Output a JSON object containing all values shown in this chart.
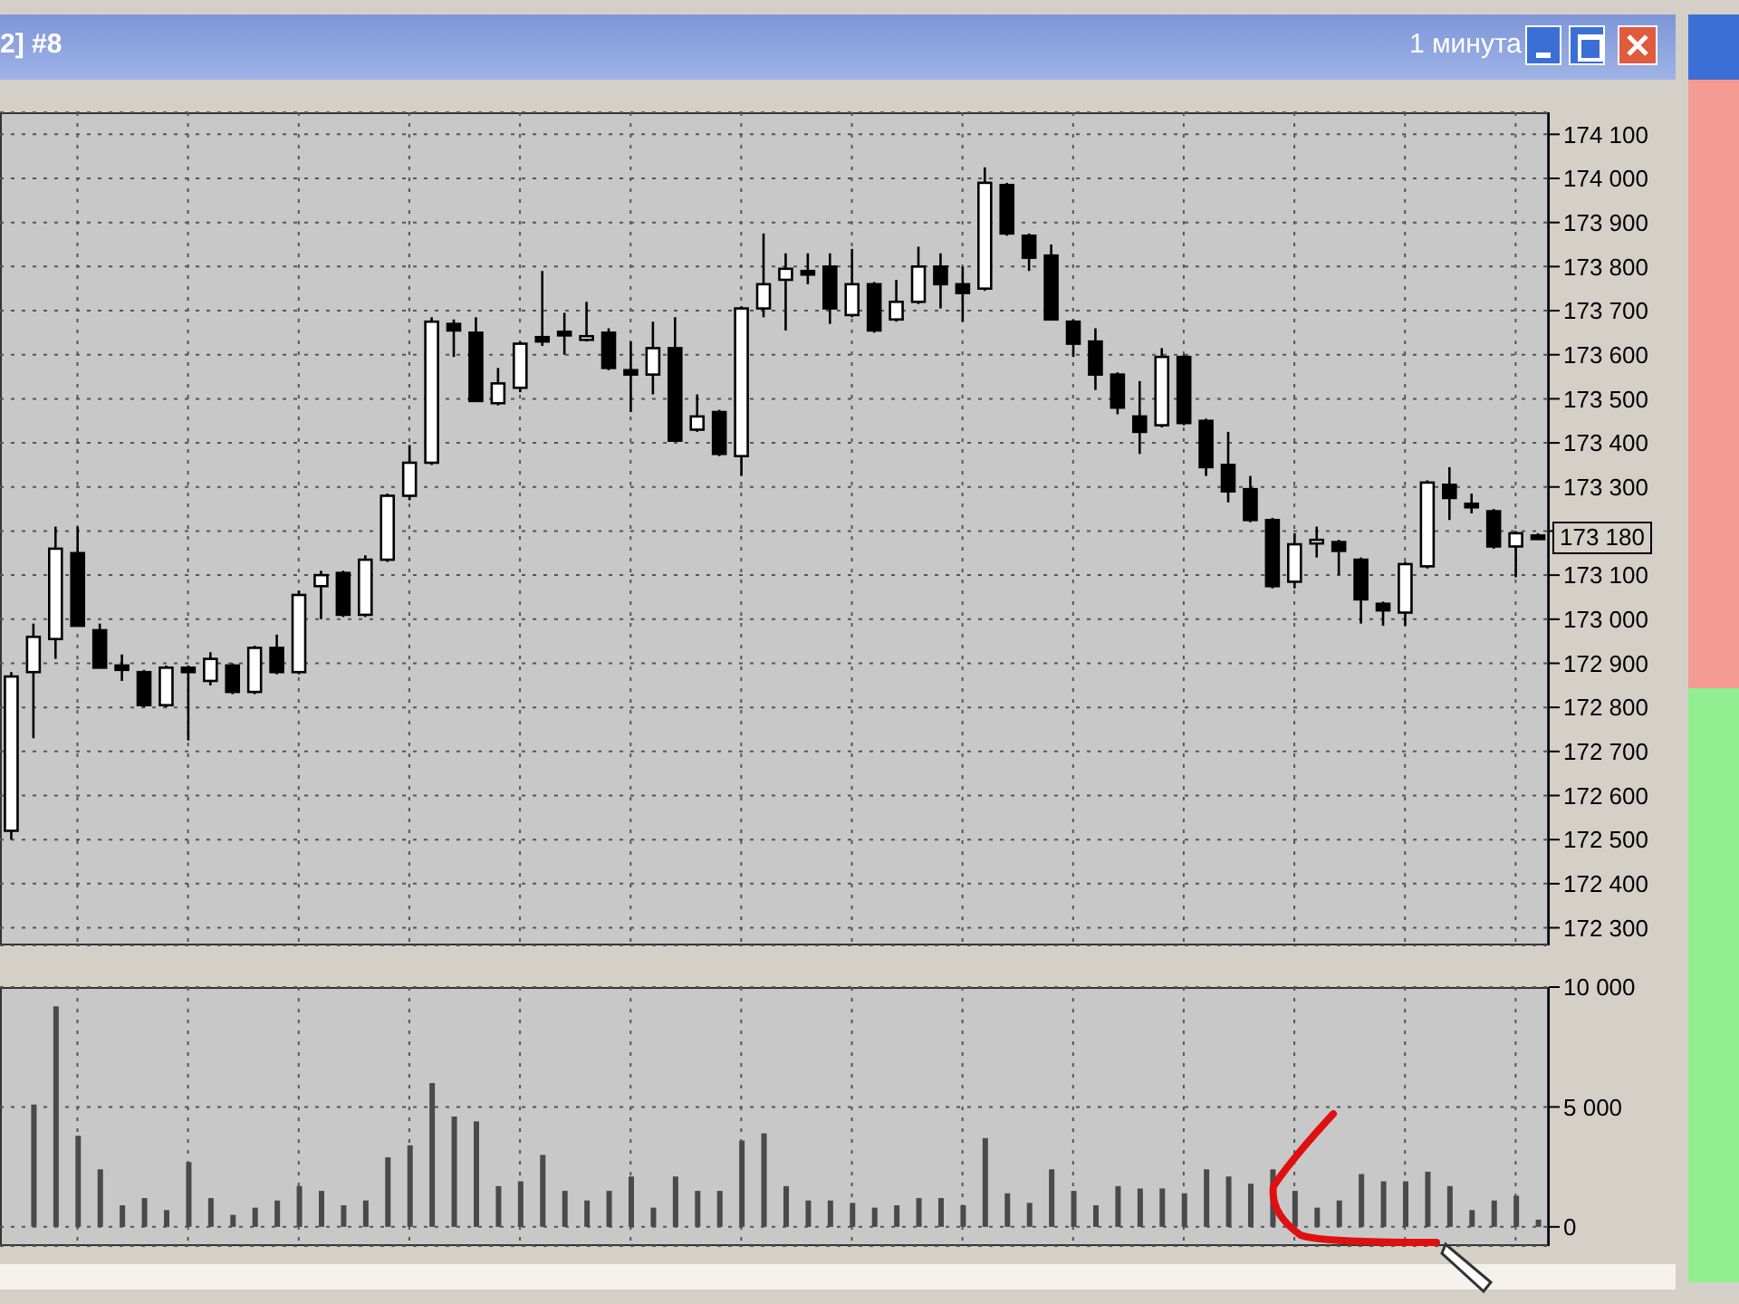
{
  "chart_data": [
    {
      "type": "candlestick",
      "title": "1 минута",
      "annotations": [
        "2] #8",
        "173 180"
      ],
      "categories": [
        null,
        null,
        null,
        null,
        null,
        null,
        null,
        null,
        null,
        null,
        null,
        null,
        null,
        null,
        null,
        null,
        null,
        null,
        null,
        null,
        null,
        null,
        null,
        null,
        null,
        null,
        null,
        null,
        null,
        null,
        null,
        null,
        null,
        null,
        null,
        null,
        null,
        null,
        null,
        null,
        null,
        null,
        null,
        null,
        null,
        null,
        null,
        null,
        null,
        null,
        null,
        null,
        null,
        null,
        null,
        null,
        null,
        null,
        null,
        null,
        null,
        null,
        null,
        null,
        null,
        null,
        null,
        null,
        null,
        null
      ],
      "ohlc": [
        [
          172520,
          172880,
          172500,
          172870
        ],
        [
          172880,
          172990,
          172730,
          172960
        ],
        [
          172955,
          173210,
          172910,
          173160
        ],
        [
          173150,
          173210,
          172985,
          172985
        ],
        [
          172975,
          172990,
          172890,
          172890
        ],
        [
          172895,
          172920,
          172860,
          172885
        ],
        [
          172880,
          172885,
          172800,
          172805
        ],
        [
          172805,
          172895,
          172800,
          172890
        ],
        [
          172890,
          172895,
          172725,
          172880
        ],
        [
          172860,
          172925,
          172850,
          172910
        ],
        [
          172895,
          172900,
          172830,
          172835
        ],
        [
          172835,
          172940,
          172830,
          172935
        ],
        [
          172935,
          172965,
          172875,
          172880
        ],
        [
          172880,
          173065,
          172875,
          173055
        ],
        [
          173075,
          173110,
          173000,
          173100
        ],
        [
          173105,
          173110,
          173005,
          173010
        ],
        [
          173010,
          173145,
          173005,
          173135
        ],
        [
          173135,
          173285,
          173130,
          173280
        ],
        [
          173280,
          173395,
          173270,
          173355
        ],
        [
          173355,
          173685,
          173350,
          173675
        ],
        [
          173670,
          173680,
          173595,
          173655
        ],
        [
          173650,
          173685,
          173495,
          173495
        ],
        [
          173490,
          173570,
          173485,
          173535
        ],
        [
          173525,
          173630,
          173515,
          173625
        ],
        [
          173640,
          173790,
          173620,
          173630
        ],
        [
          173652,
          173695,
          173600,
          173648
        ],
        [
          173640,
          173720,
          173630,
          173642
        ],
        [
          173650,
          173660,
          173565,
          173570
        ],
        [
          173565,
          173630,
          173470,
          173555
        ],
        [
          173555,
          173675,
          173510,
          173615
        ],
        [
          173615,
          173685,
          173405,
          173405
        ],
        [
          173430,
          173510,
          173425,
          173460
        ],
        [
          173470,
          173475,
          173370,
          173375
        ],
        [
          173370,
          173710,
          173325,
          173705
        ],
        [
          173705,
          173875,
          173685,
          173760
        ],
        [
          173770,
          173830,
          173655,
          173795
        ],
        [
          173790,
          173830,
          173760,
          173785
        ],
        [
          173800,
          173830,
          173670,
          173705
        ],
        [
          173690,
          173840,
          173685,
          173760
        ],
        [
          173760,
          173765,
          173650,
          173655
        ],
        [
          173680,
          173770,
          173675,
          173720
        ],
        [
          173720,
          173845,
          173715,
          173800
        ],
        [
          173800,
          173830,
          173705,
          173760
        ],
        [
          173760,
          173800,
          173675,
          173740
        ],
        [
          173750,
          174025,
          173745,
          173990
        ],
        [
          173985,
          173990,
          173870,
          173875
        ],
        [
          173870,
          173875,
          173790,
          173820
        ],
        [
          173825,
          173850,
          173680,
          173680
        ],
        [
          173675,
          173680,
          173595,
          173625
        ],
        [
          173630,
          173660,
          173520,
          173555
        ],
        [
          173555,
          173560,
          173465,
          173480
        ],
        [
          173460,
          173540,
          173375,
          173425
        ],
        [
          173440,
          173615,
          173435,
          173595
        ],
        [
          173595,
          173600,
          173440,
          173445
        ],
        [
          173450,
          173455,
          173325,
          173345
        ],
        [
          173350,
          173425,
          173265,
          173290
        ],
        [
          173295,
          173325,
          173220,
          173225
        ],
        [
          173225,
          173230,
          173070,
          173075
        ],
        [
          173085,
          173195,
          173070,
          173170
        ],
        [
          173175,
          173210,
          173140,
          173180
        ],
        [
          173175,
          173180,
          173100,
          173155
        ],
        [
          173135,
          173140,
          172990,
          173045
        ],
        [
          173035,
          173040,
          172985,
          173020
        ],
        [
          173015,
          173130,
          172985,
          173125
        ],
        [
          173120,
          173315,
          173115,
          173310
        ],
        [
          173305,
          173345,
          173225,
          173275
        ],
        [
          173262,
          173285,
          173240,
          173255
        ],
        [
          173245,
          173250,
          173160,
          173165
        ],
        [
          173165,
          173200,
          173095,
          173195
        ],
        [
          173190,
          173195,
          173180,
          173185
        ]
      ],
      "color": "#000000",
      "ylim": [
        172260,
        174150
      ],
      "yticks": [
        {
          "value": 172300,
          "label": "172 300"
        },
        {
          "value": 172400,
          "label": "172 400"
        },
        {
          "value": 172500,
          "label": "172 500"
        },
        {
          "value": 172600,
          "label": "172 600"
        },
        {
          "value": 172700,
          "label": "172 700"
        },
        {
          "value": 172800,
          "label": "172 800"
        },
        {
          "value": 172900,
          "label": "172 900"
        },
        {
          "value": 173000,
          "label": "173 000"
        },
        {
          "value": 173100,
          "label": "173 100"
        },
        {
          "value": 173200,
          "label": null
        },
        {
          "value": 173300,
          "label": "173 300"
        },
        {
          "value": 173400,
          "label": "173 400"
        },
        {
          "value": 173500,
          "label": "173 500"
        },
        {
          "value": 173600,
          "label": "173 600"
        },
        {
          "value": 173700,
          "label": "173 700"
        },
        {
          "value": 173800,
          "label": "173 800"
        },
        {
          "value": 173900,
          "label": "173 900"
        },
        {
          "value": 174000,
          "label": "174 000"
        },
        {
          "value": 174100,
          "label": "174 100"
        }
      ],
      "grid": true,
      "tick_labels": "y"
    },
    {
      "type": "bar",
      "categories": [
        null,
        null,
        null,
        null,
        null,
        null,
        null,
        null,
        null,
        null,
        null,
        null,
        null,
        null,
        null,
        null,
        null,
        null,
        null,
        null,
        null,
        null,
        null,
        null,
        null,
        null,
        null,
        null,
        null,
        null,
        null,
        null,
        null,
        null,
        null,
        null,
        null,
        null,
        null,
        null,
        null,
        null,
        null,
        null,
        null,
        null,
        null,
        null,
        null,
        null,
        null,
        null,
        null,
        null,
        null,
        null,
        null,
        null,
        null,
        null,
        null,
        null,
        null,
        null,
        null,
        null,
        null,
        null,
        null,
        null
      ],
      "values": [
        null,
        5100,
        9200,
        3800,
        2400,
        900,
        1200,
        700,
        2700,
        1200,
        500,
        800,
        1100,
        1700,
        1500,
        900,
        1100,
        2900,
        3400,
        6000,
        4600,
        4400,
        1700,
        1900,
        3000,
        1500,
        1100,
        1500,
        2100,
        800,
        2100,
        1500,
        1500,
        3600,
        3900,
        1700,
        1100,
        1100,
        1000,
        800,
        900,
        1200,
        1200,
        900,
        3700,
        1400,
        1000,
        2400,
        1500,
        900,
        1700,
        1600,
        1600,
        1400,
        2400,
        2100,
        1800,
        2400,
        1500,
        800,
        1100,
        2200,
        1900,
        1900,
        2300,
        1700,
        700,
        1100,
        1300,
        300
      ],
      "color": "#4a4a4a",
      "ylim": [
        -800,
        10000
      ],
      "yticks": [
        {
          "value": 0,
          "label": "0"
        },
        {
          "value": 5000,
          "label": "5 000"
        },
        {
          "value": 10000,
          "label": "10 000"
        }
      ],
      "grid": true,
      "tick_labels": "y"
    }
  ]
}
